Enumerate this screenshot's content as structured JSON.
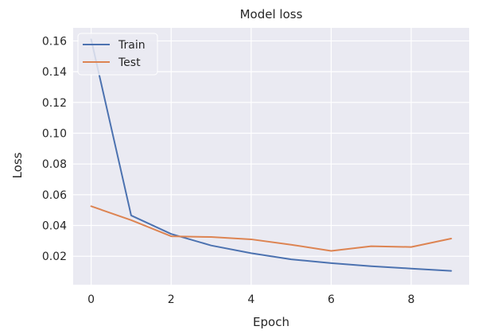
{
  "chart_data": {
    "type": "line",
    "title": "Model loss",
    "xlabel": "Epoch",
    "ylabel": "Loss",
    "x": [
      0,
      1,
      2,
      3,
      4,
      5,
      6,
      7,
      8,
      9
    ],
    "xlim": [
      -0.45,
      9.45
    ],
    "ylim": [
      0.0015,
      0.1685
    ],
    "xticks": [
      0,
      2,
      4,
      6,
      8
    ],
    "xtick_labels": [
      "0",
      "2",
      "4",
      "6",
      "8"
    ],
    "yticks": [
      0.02,
      0.04,
      0.06,
      0.08,
      0.1,
      0.12,
      0.14,
      0.16
    ],
    "ytick_labels": [
      "0.02",
      "0.04",
      "0.06",
      "0.08",
      "0.10",
      "0.12",
      "0.14",
      "0.16"
    ],
    "grid": true,
    "legend": "top-left",
    "series": [
      {
        "name": "Train",
        "color": "#4c72b0",
        "values": [
          0.161,
          0.0465,
          0.0345,
          0.027,
          0.022,
          0.018,
          0.0155,
          0.0135,
          0.012,
          0.0105
        ]
      },
      {
        "name": "Test",
        "color": "#dd8452",
        "values": [
          0.0525,
          0.0435,
          0.033,
          0.0325,
          0.031,
          0.0275,
          0.0235,
          0.0265,
          0.026,
          0.0315
        ]
      }
    ]
  }
}
